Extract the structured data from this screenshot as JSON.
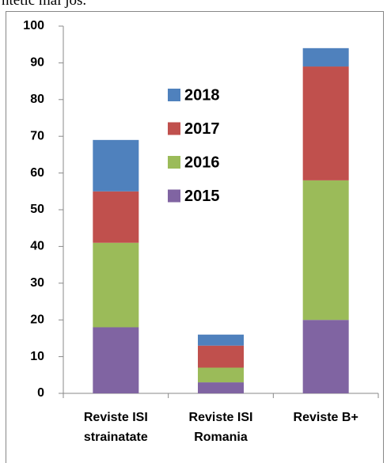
{
  "page_text": "ntetic mai jos.",
  "chart_data": {
    "type": "stacked_bar",
    "categories": [
      "Reviste ISI strainatate",
      "Reviste ISI Romania",
      "Reviste B+"
    ],
    "series": [
      {
        "name": "2015",
        "color": "#8064a2",
        "values": [
          18,
          3,
          20
        ]
      },
      {
        "name": "2016",
        "color": "#9bbb59",
        "values": [
          23,
          4,
          38
        ]
      },
      {
        "name": "2017",
        "color": "#c0504d",
        "values": [
          14,
          6,
          31
        ]
      },
      {
        "name": "2018",
        "color": "#4f81bd",
        "values": [
          14,
          3,
          5
        ]
      }
    ],
    "ylim": [
      0,
      100
    ],
    "yticks": [
      0,
      10,
      20,
      30,
      40,
      50,
      60,
      70,
      80,
      90,
      100
    ],
    "grid": false,
    "legend": "inside-center"
  }
}
